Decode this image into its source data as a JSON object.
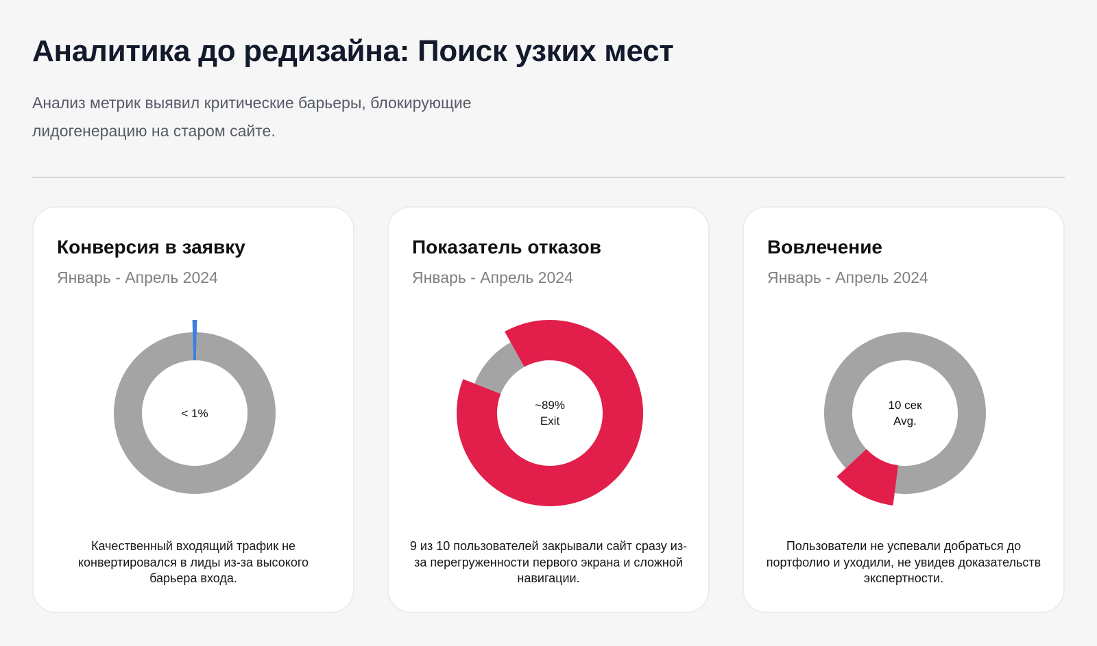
{
  "header": {
    "title": "Аналитика до редизайна: Поиск узких мест",
    "subtitle": "Анализ метрик выявил критические барьеры, блокирующие лидогенерацию на старом сайте."
  },
  "colors": {
    "neutral": "#a4a4a4",
    "accent_blue": "#3b7fe0",
    "accent_red": "#e21e4b"
  },
  "cards": [
    {
      "title": "Конверсия в заявку",
      "period": "Январь - Апрель 2024",
      "description": "Качественный входящий трафик не конвертировался в лиды из-за высокого барьера входа.",
      "center_label": [
        "< 1%"
      ]
    },
    {
      "title": "Показатель отказов",
      "period": "Январь - Апрель 2024",
      "description": "9 из 10 пользователей закрывали сайт сразу из-за перегруженности первого экрана и сложной навигации.",
      "center_label": [
        "~89%",
        "Exit"
      ]
    },
    {
      "title": "Вовлечение",
      "period": "Январь - Апрель 2024",
      "description": "Пользователи не успевали добраться до портфолио и уходили, не увидев доказательств экспертности.",
      "center_label": [
        "10 сек",
        "Avg."
      ]
    }
  ],
  "chart_data": [
    {
      "type": "pie",
      "variant": "donut",
      "title": "Конверсия в заявку",
      "slices": [
        {
          "value": 0.8,
          "color": "#3b7fe0",
          "highlighted": true
        },
        {
          "value": 99.2,
          "color": "#a4a4a4",
          "highlighted": false
        }
      ]
    },
    {
      "type": "pie",
      "variant": "donut",
      "title": "Показатель отказов",
      "slices": [
        {
          "value": 89,
          "color": "#e21e4b",
          "highlighted": true
        },
        {
          "value": 11,
          "color": "#a4a4a4",
          "highlighted": false
        }
      ]
    },
    {
      "type": "pie",
      "variant": "donut",
      "title": "Вовлечение",
      "slices": [
        {
          "value": 89,
          "color": "#a4a4a4",
          "highlighted": false
        },
        {
          "value": 11,
          "color": "#e21e4b",
          "highlighted": true
        }
      ]
    }
  ]
}
